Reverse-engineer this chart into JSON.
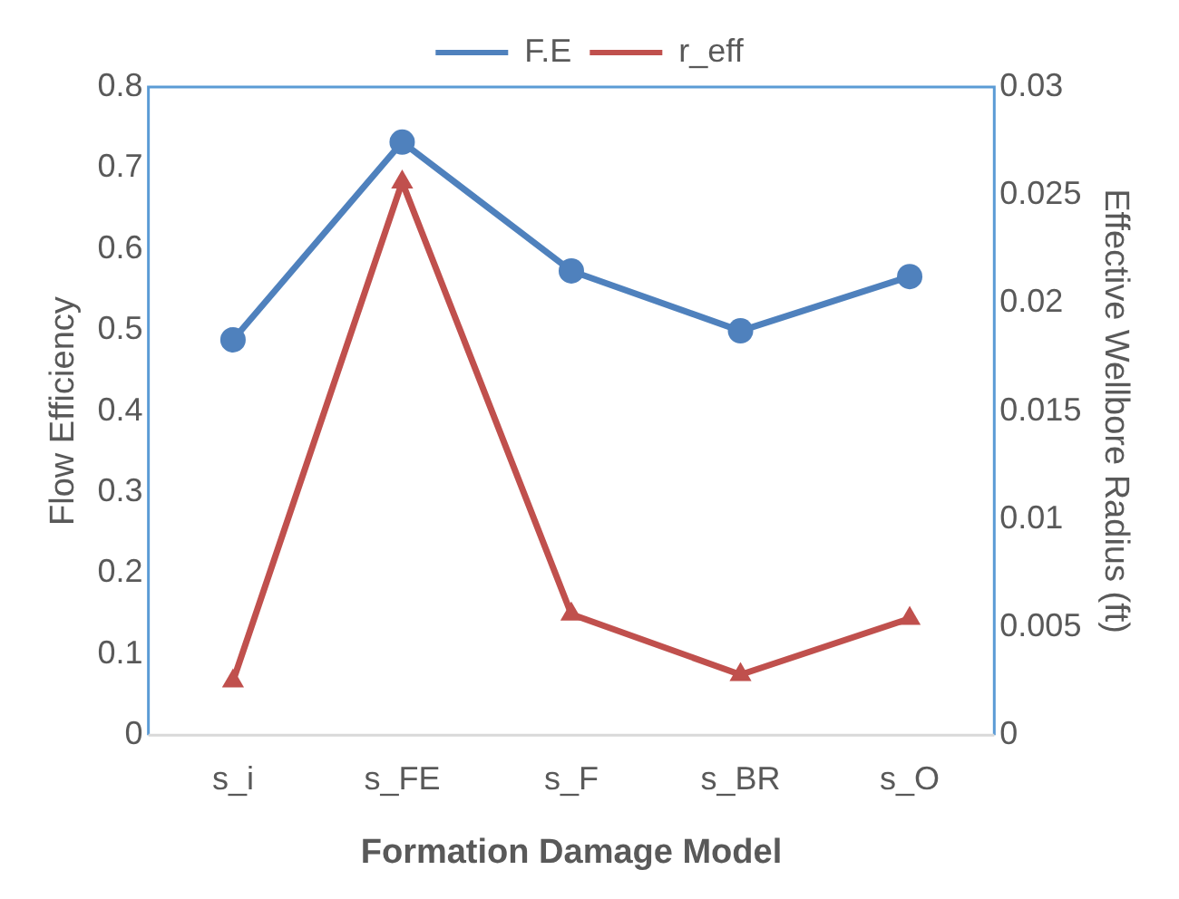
{
  "chart_data": {
    "type": "line",
    "xlabel": "Formation Damage Model",
    "ylabel": "Flow Efficiency",
    "y2label": "Effective Wellbore Radius (ft)",
    "categories": [
      "s_i",
      "s_FE",
      "s_F",
      "s_BR",
      "s_O"
    ],
    "series": [
      {
        "name": "F.E",
        "color": "#4f81bd",
        "marker": "circle",
        "values": [
          0.488,
          0.732,
          0.573,
          0.499,
          0.566
        ]
      },
      {
        "name": "r_eff",
        "color": "#c0504d",
        "marker": "triangle",
        "axis": "y2",
        "values": [
          0.0025,
          0.0256,
          0.0056,
          0.0028,
          0.0054
        ]
      }
    ],
    "ylim": [
      0,
      0.8
    ],
    "yticks": [
      0,
      0.1,
      0.2,
      0.3,
      0.4,
      0.5,
      0.6,
      0.7,
      0.8
    ],
    "y2lim": [
      0,
      0.03
    ],
    "y2ticks": [
      0,
      0.005,
      0.01,
      0.015,
      0.02,
      0.025,
      0.03
    ],
    "grid": false,
    "legend": "top",
    "line_style": "solid"
  }
}
